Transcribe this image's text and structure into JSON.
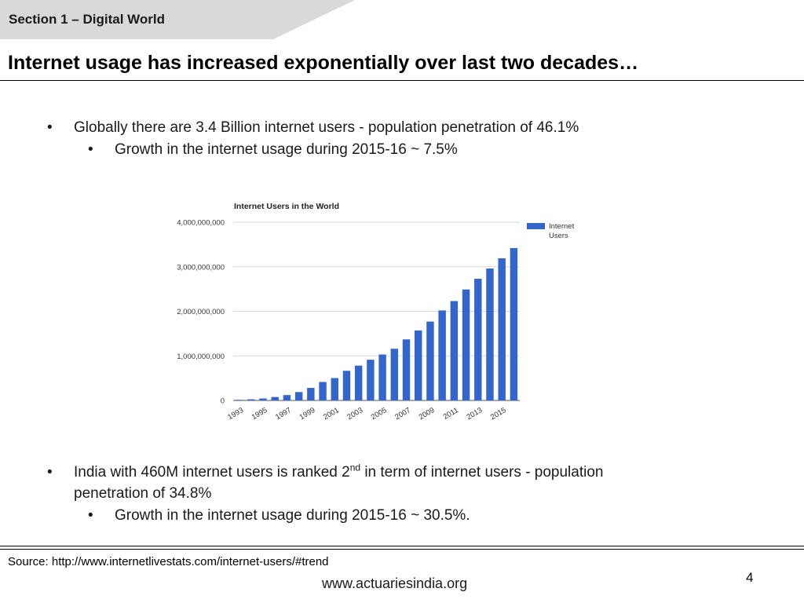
{
  "header": {
    "section": "Section 1 – Digital World",
    "title": "Internet usage has increased exponentially over last two decades…"
  },
  "bullets": {
    "b1": "Globally there are 3.4 Billion internet users - population penetration of 46.1%",
    "b1_sub": "Growth in the internet usage during 2015-16 ~ 7.5%",
    "b2_pre": "India with 460M internet users is ranked 2",
    "b2_sup": "nd",
    "b2_post": " in term of internet users - population",
    "b2_line2": "penetration of 34.8%",
    "b2_sub": "Growth in the internet usage during 2015-16 ~ 30.5%."
  },
  "bullet_symbol": "•",
  "footer": {
    "source": "Source: http://www.internetlivestats.com/internet-users/#trend",
    "page_number": "4",
    "website": "www.actuariesindia.org"
  },
  "colors": {
    "bar": "#3366cc",
    "grid": "#d9d9d9",
    "header_tab": "#d9d9d9"
  },
  "chart_data": {
    "type": "bar",
    "title": "Internet Users in the World",
    "categories": [
      "1993",
      "1994",
      "1995",
      "1996",
      "1997",
      "1998",
      "1999",
      "2000",
      "2001",
      "2002",
      "2003",
      "2004",
      "2005",
      "2006",
      "2007",
      "2008",
      "2009",
      "2010",
      "2011",
      "2012",
      "2013",
      "2014",
      "2015",
      "2016"
    ],
    "tick_labels": [
      "1993",
      "1995",
      "1997",
      "1999",
      "2001",
      "2003",
      "2005",
      "2007",
      "2009",
      "2011",
      "2013",
      "2015"
    ],
    "series": [
      {
        "name": "Internet Users",
        "values": [
          14000000,
          25000000,
          44000000,
          77000000,
          120000000,
          188000000,
          281000000,
          414000000,
          502000000,
          665000000,
          781000000,
          913000000,
          1030000000,
          1160000000,
          1370000000,
          1570000000,
          1770000000,
          2020000000,
          2230000000,
          2490000000,
          2730000000,
          2960000000,
          3190000000,
          3420000000
        ]
      }
    ],
    "y_ticks": [
      "0",
      "1,000,000,000",
      "2,000,000,000",
      "3,000,000,000",
      "4,000,000,000"
    ],
    "ylim": [
      0,
      4000000000
    ],
    "legend": {
      "label_line1": "Internet",
      "label_line2": "Users",
      "position": "top-right"
    },
    "grid": true,
    "xlabel": "",
    "ylabel": ""
  }
}
